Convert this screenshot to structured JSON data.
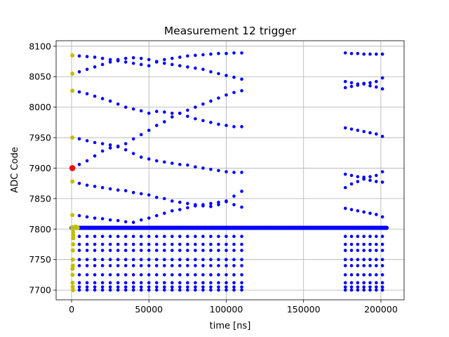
{
  "chart_data": {
    "type": "scatter",
    "title": "Measurement 12 trigger",
    "xlabel": "time [ns]",
    "ylabel": "ADC Code",
    "xlim": [
      -10000,
      215000
    ],
    "ylim": [
      7684,
      8109
    ],
    "xticks": [
      0,
      50000,
      100000,
      150000,
      200000
    ],
    "xtick_labels": [
      "0",
      "50000",
      "100000",
      "150000",
      "200000"
    ],
    "yticks": [
      7700,
      7750,
      7800,
      7850,
      7900,
      7950,
      8000,
      8050,
      8100
    ],
    "ytick_labels": [
      "7700",
      "7750",
      "7800",
      "7850",
      "7900",
      "7950",
      "8000",
      "8050",
      "8100"
    ],
    "grid": true,
    "colors": {
      "blue": "#0000ff",
      "olive": "#bfbf00",
      "red": "#ff0000"
    },
    "baseline": {
      "y": 7802,
      "x_start": 0,
      "x_end": 204000,
      "step": 700
    },
    "trace_groups": [
      {
        "x": [
          5000,
          10000,
          15000,
          20000,
          25000,
          30000,
          35000,
          40000,
          45000,
          50000,
          55000,
          60000,
          65000,
          70000,
          75000,
          80000,
          85000,
          90000,
          95000,
          100000,
          105000,
          110000
        ],
        "lines": [
          [
            8084,
            8083,
            8082,
            8080,
            8078,
            8076,
            8074,
            8072,
            8070,
            8068,
            8075,
            8078,
            8080,
            8082,
            8084,
            8085,
            8086,
            8087,
            8088,
            8088,
            8089,
            8089
          ],
          [
            8058,
            8062,
            8066,
            8070,
            8074,
            8078,
            8080,
            8081,
            8080,
            8078,
            8074,
            8072,
            8070,
            8068,
            8066,
            8064,
            8062,
            8058,
            8055,
            8052,
            8049,
            8046
          ],
          [
            8025,
            8022,
            8018,
            8014,
            8010,
            8005,
            8000,
            7997,
            7994,
            7990,
            7993,
            7992,
            7990,
            7990,
            7995,
            8000,
            8005,
            8010,
            8015,
            8020,
            8024,
            8027
          ],
          [
            7906,
            7912,
            7920,
            7928,
            7933,
            7936,
            7940,
            7948,
            7955,
            7962,
            7970,
            7976,
            7984,
            7990,
            7985,
            7981,
            7978,
            7975,
            7972,
            7970,
            7968,
            7968
          ],
          [
            7948,
            7945,
            7942,
            7940,
            7938,
            7935,
            7930,
            7924,
            7918,
            7915,
            7912,
            7910,
            7908,
            7906,
            7905,
            7902,
            7900,
            7898,
            7896,
            7894,
            7893,
            7893
          ],
          [
            7875,
            7872,
            7870,
            7868,
            7866,
            7864,
            7863,
            7860,
            7858,
            7856,
            7852,
            7850,
            7846,
            7844,
            7842,
            7840,
            7838,
            7837,
            7840,
            7846,
            7854,
            7862
          ],
          [
            7822,
            7820,
            7818,
            7817,
            7815,
            7814,
            7812,
            7811,
            7815,
            7818,
            7822,
            7826,
            7830,
            7832,
            7835,
            7838,
            7840,
            7842,
            7844,
            7845,
            7840,
            7836
          ]
        ]
      },
      {
        "x": [
          177000,
          181000,
          185000,
          189000,
          193000,
          197000,
          201000
        ],
        "lines": [
          [
            8089,
            8088,
            8088,
            8087,
            8087,
            8087,
            8087
          ],
          [
            8042,
            8040,
            8038,
            8039,
            8040,
            8042,
            8048
          ],
          [
            8032,
            8034,
            8036,
            8038,
            8035,
            8033,
            8030
          ],
          [
            7966,
            7964,
            7962,
            7960,
            7958,
            7956,
            7952
          ],
          [
            7890,
            7888,
            7886,
            7885,
            7886,
            7888,
            7894
          ],
          [
            7868,
            7874,
            7878,
            7882,
            7880,
            7878,
            7877
          ],
          [
            7834,
            7832,
            7830,
            7828,
            7826,
            7824,
            7820
          ]
        ]
      }
    ],
    "below_rows": {
      "y": [
        7788,
        7775,
        7765,
        7750,
        7740,
        7725,
        7712,
        7705,
        7700
      ],
      "x_start": 5000,
      "x_end": 110000,
      "step": 5000,
      "x2": [
        177000,
        181000,
        185000,
        189000,
        193000,
        197000,
        201000
      ]
    },
    "olive_points": {
      "x": [
        500,
        500,
        500,
        500,
        500,
        500,
        500,
        500,
        500,
        1500,
        2000,
        2500,
        3000,
        3500,
        4000,
        1000,
        1000,
        1000,
        1000,
        800,
        800,
        800,
        600,
        600,
        600,
        700,
        900
      ],
      "y": [
        8085,
        8055,
        8027,
        7950,
        7878,
        7823,
        7803,
        7802,
        7801,
        7802,
        7803,
        7804,
        7802,
        7803,
        7802,
        7795,
        7790,
        7785,
        7775,
        7765,
        7750,
        7740,
        7735,
        7725,
        7712,
        7705,
        7700
      ]
    },
    "red_point": {
      "x": 500,
      "y": 7900
    }
  }
}
